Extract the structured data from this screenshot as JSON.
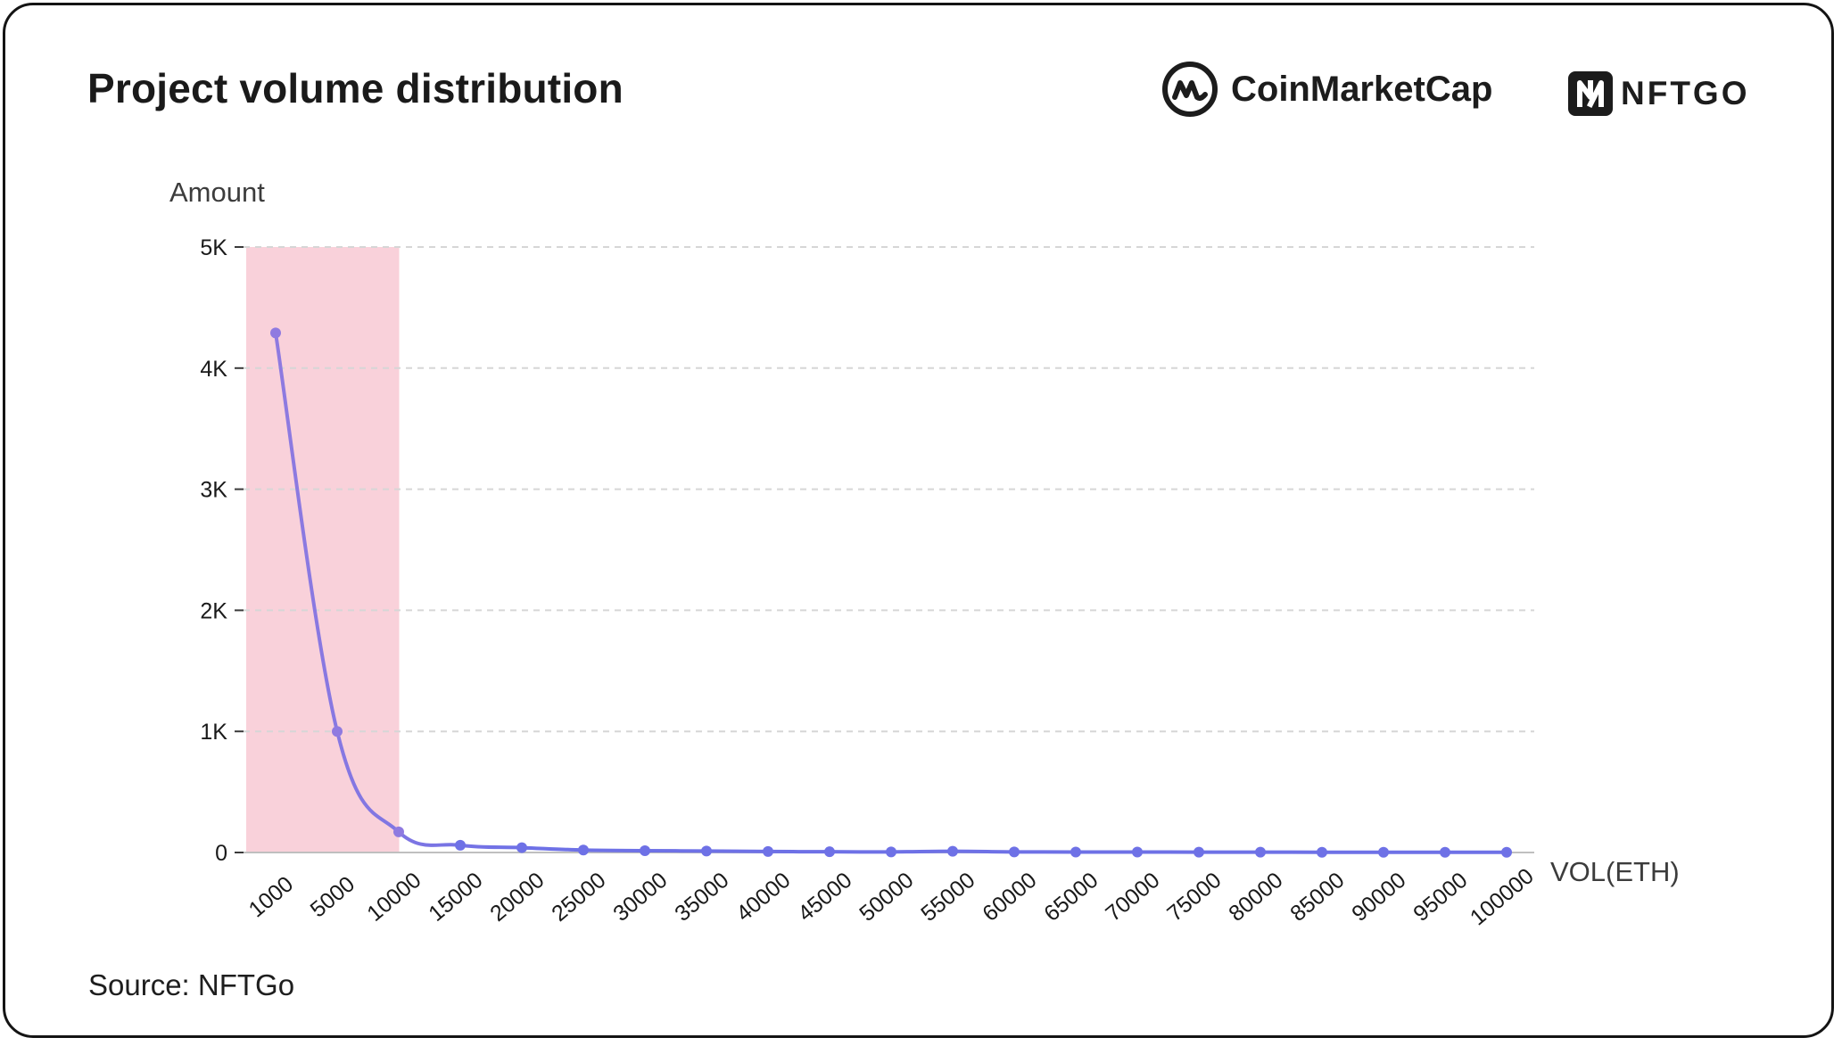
{
  "header": {
    "title": "Project volume distribution",
    "brand_cmc": "CoinMarketCap",
    "brand_nftgo": "NFTGO"
  },
  "icons": {
    "cmc": "coinmarketcap-logo-icon",
    "nftgo": "nftgo-logo-icon"
  },
  "footer": {
    "source": "Source: NFTGo"
  },
  "colors": {
    "line": "#8f7ae0",
    "line_low": "#6e71e6",
    "point": "#8f7ae0",
    "highlight": "#f9d1da",
    "grid": "#d6d6d6",
    "text": "#1a1a1a"
  },
  "chart_data": {
    "type": "line",
    "ylabel": "Amount",
    "xlabel": "VOL(ETH)",
    "categories": [
      "1000",
      "5000",
      "10000",
      "15000",
      "20000",
      "25000",
      "30000",
      "35000",
      "40000",
      "45000",
      "50000",
      "55000",
      "60000",
      "65000",
      "70000",
      "75000",
      "80000",
      "85000",
      "90000",
      "95000",
      "100000"
    ],
    "values": [
      4290,
      1000,
      170,
      60,
      40,
      20,
      15,
      12,
      8,
      6,
      5,
      10,
      5,
      4,
      4,
      3,
      3,
      2,
      2,
      2,
      2
    ],
    "ylim": [
      0,
      5000
    ],
    "yticks": [
      {
        "value": 0,
        "label": "0"
      },
      {
        "value": 1000,
        "label": "1K"
      },
      {
        "value": 2000,
        "label": "2K"
      },
      {
        "value": 3000,
        "label": "3K"
      },
      {
        "value": 4000,
        "label": "4K"
      },
      {
        "value": 5000,
        "label": "5K"
      }
    ],
    "highlight_range": [
      "1000",
      "10000"
    ],
    "grid": true,
    "legend": "none"
  }
}
